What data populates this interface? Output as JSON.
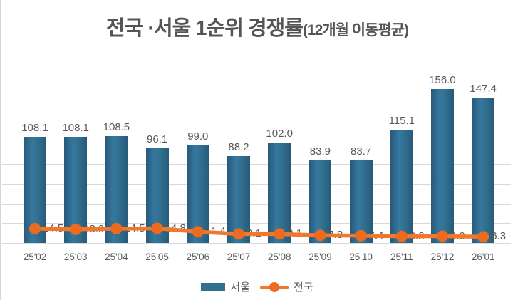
{
  "title": {
    "main": "전국 ·서울 1순위 경쟁률",
    "suffix": "(12개월 이동평균)"
  },
  "legend": [
    {
      "label": "서울",
      "type": "bar"
    },
    {
      "label": "전국",
      "type": "line"
    }
  ],
  "colors": {
    "bar": "#31708F",
    "bar_dark": "#27597A",
    "bar_light": "#36789F",
    "line": "#F0772B",
    "marker": "#EC6B1F",
    "grid": "#D9D9D9",
    "label": "#595959",
    "title": "#555555"
  },
  "chart_data": {
    "type": "combo",
    "title": "전국 ·서울 1순위 경쟁률(12개월 이동평균)",
    "categories": [
      "25'02",
      "25'03",
      "25'04",
      "25'05",
      "25'06",
      "25'07",
      "25'08",
      "25'09",
      "25'10",
      "25'11",
      "25'12",
      "26'01"
    ],
    "series": [
      {
        "name": "서울",
        "type": "bar",
        "values": [
          108.1,
          108.1,
          108.5,
          96.1,
          99.0,
          88.2,
          102.0,
          83.9,
          83.7,
          115.1,
          156.0,
          147.4
        ]
      },
      {
        "name": "전국",
        "type": "line",
        "values": [
          14.5,
          13.9,
          14.5,
          14.8,
          11.4,
          9.1,
          9.1,
          7.8,
          7.4,
          6.8,
          6.9,
          6.3
        ]
      }
    ],
    "xlabel": "",
    "ylabel": "",
    "ylim": [
      0,
      180
    ],
    "grid_interval": 20,
    "grid": true,
    "y_axis_labels_visible": false,
    "data_labels": true,
    "legend_position": "bottom"
  }
}
